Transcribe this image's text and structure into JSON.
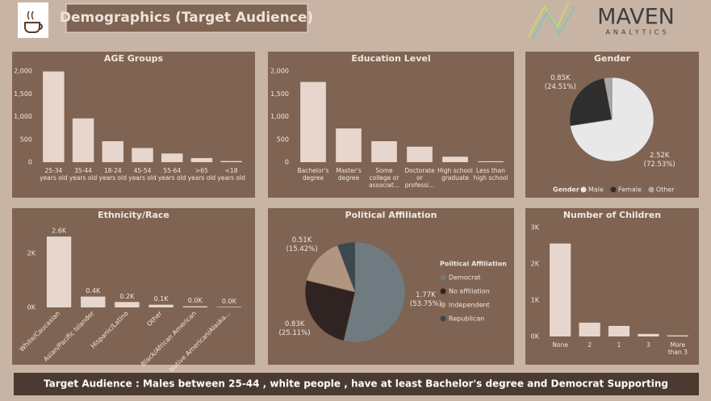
{
  "header": {
    "title": "Demographics (Target Audience)",
    "brand": "MAVEN",
    "brand_sub": "ANALYTICS"
  },
  "footer": {
    "text": "Target Audience : Males between 25-44 , white people , have at least Bachelor's degree and Democrat Supporting"
  },
  "chart_data": [
    {
      "type": "bar",
      "title": "AGE Groups",
      "color": "#e6d6cd",
      "categories": [
        "25-34 years old",
        "35-44 years old",
        "18-24 years old",
        "45-54 years old",
        "55-64 years old",
        ">65 years old",
        "<18 years old"
      ],
      "values": [
        1990,
        960,
        460,
        310,
        190,
        90,
        25
      ],
      "ylim": [
        0,
        2000
      ],
      "yticks": [
        0,
        500,
        {
          "value": 1000,
          "label": "1,000"
        },
        {
          "value": 1500,
          "label": "1,500"
        },
        {
          "value": 2000,
          "label": "2,000"
        }
      ]
    },
    {
      "type": "bar",
      "title": "Education Level",
      "color": "#e6d6cd",
      "categories": [
        "Bachelor's degree",
        "Master's degree",
        "Some college or associat...",
        "Doctorate or professi...",
        "High school graduate",
        "Less than high school"
      ],
      "values": [
        1760,
        740,
        460,
        340,
        120,
        20
      ],
      "ylim": [
        0,
        2000
      ],
      "yticks": [
        0,
        500,
        {
          "value": 1000,
          "label": "1,000"
        },
        {
          "value": 1500,
          "label": "1,500"
        },
        {
          "value": 2000,
          "label": "2,000"
        }
      ]
    },
    {
      "type": "pie",
      "title": "Gender",
      "legend_title": "Gender",
      "legend": "bottom",
      "categories": [
        "Male",
        "Female",
        "Other"
      ],
      "values": [
        2520,
        850,
        103
      ],
      "value_labels": [
        "2.52K (72.53%)",
        "0.85K (24.51%)",
        null
      ],
      "colors": [
        "#e8e8e8",
        "#2e2e2e",
        "#a9a9a9"
      ]
    },
    {
      "type": "bar",
      "title": "Ethnicity/Race",
      "color": "#e6d6cd",
      "xtick_rotation": -45,
      "categories": [
        "White/Caucasian",
        "Asian/Pacific Islander",
        "Hispanic/Latino",
        "Other",
        "Black/African American",
        "Native American/Alaska..."
      ],
      "values": [
        2620,
        400,
        200,
        100,
        40,
        20
      ],
      "value_labels": [
        "2.6K",
        "0.4K",
        "0.2K",
        "0.1K",
        "0.0K",
        "0.0K"
      ],
      "ylim": [
        0,
        2700
      ],
      "yticks": [
        {
          "value": 0,
          "label": "0K"
        },
        {
          "value": 2000,
          "label": "2K"
        }
      ]
    },
    {
      "type": "pie",
      "title": "Political Affiliation",
      "legend_title": "Political Affiliation",
      "legend": "right",
      "categories": [
        "Democrat",
        "No affiliation",
        "Independent",
        "Republican"
      ],
      "values": [
        1770,
        830,
        510,
        190
      ],
      "value_labels": [
        "1.77K (53.75%)",
        "0.83K (25.11%)",
        "0.51K (15.42%)",
        null
      ],
      "colors": [
        "#6f7b80",
        "#2f2422",
        "#b09580",
        "#3c4850"
      ]
    },
    {
      "type": "bar",
      "title": "Number of Children",
      "color": "#e6d6cd",
      "categories": [
        "None",
        "2",
        "1",
        "3",
        "More than 3"
      ],
      "values": [
        2560,
        380,
        290,
        70,
        30
      ],
      "ylim": [
        0,
        3000
      ],
      "yticks": [
        {
          "value": 0,
          "label": "0K"
        },
        {
          "value": 1000,
          "label": "1K"
        },
        {
          "value": 2000,
          "label": "2K"
        },
        {
          "value": 3000,
          "label": "3K"
        }
      ]
    }
  ]
}
